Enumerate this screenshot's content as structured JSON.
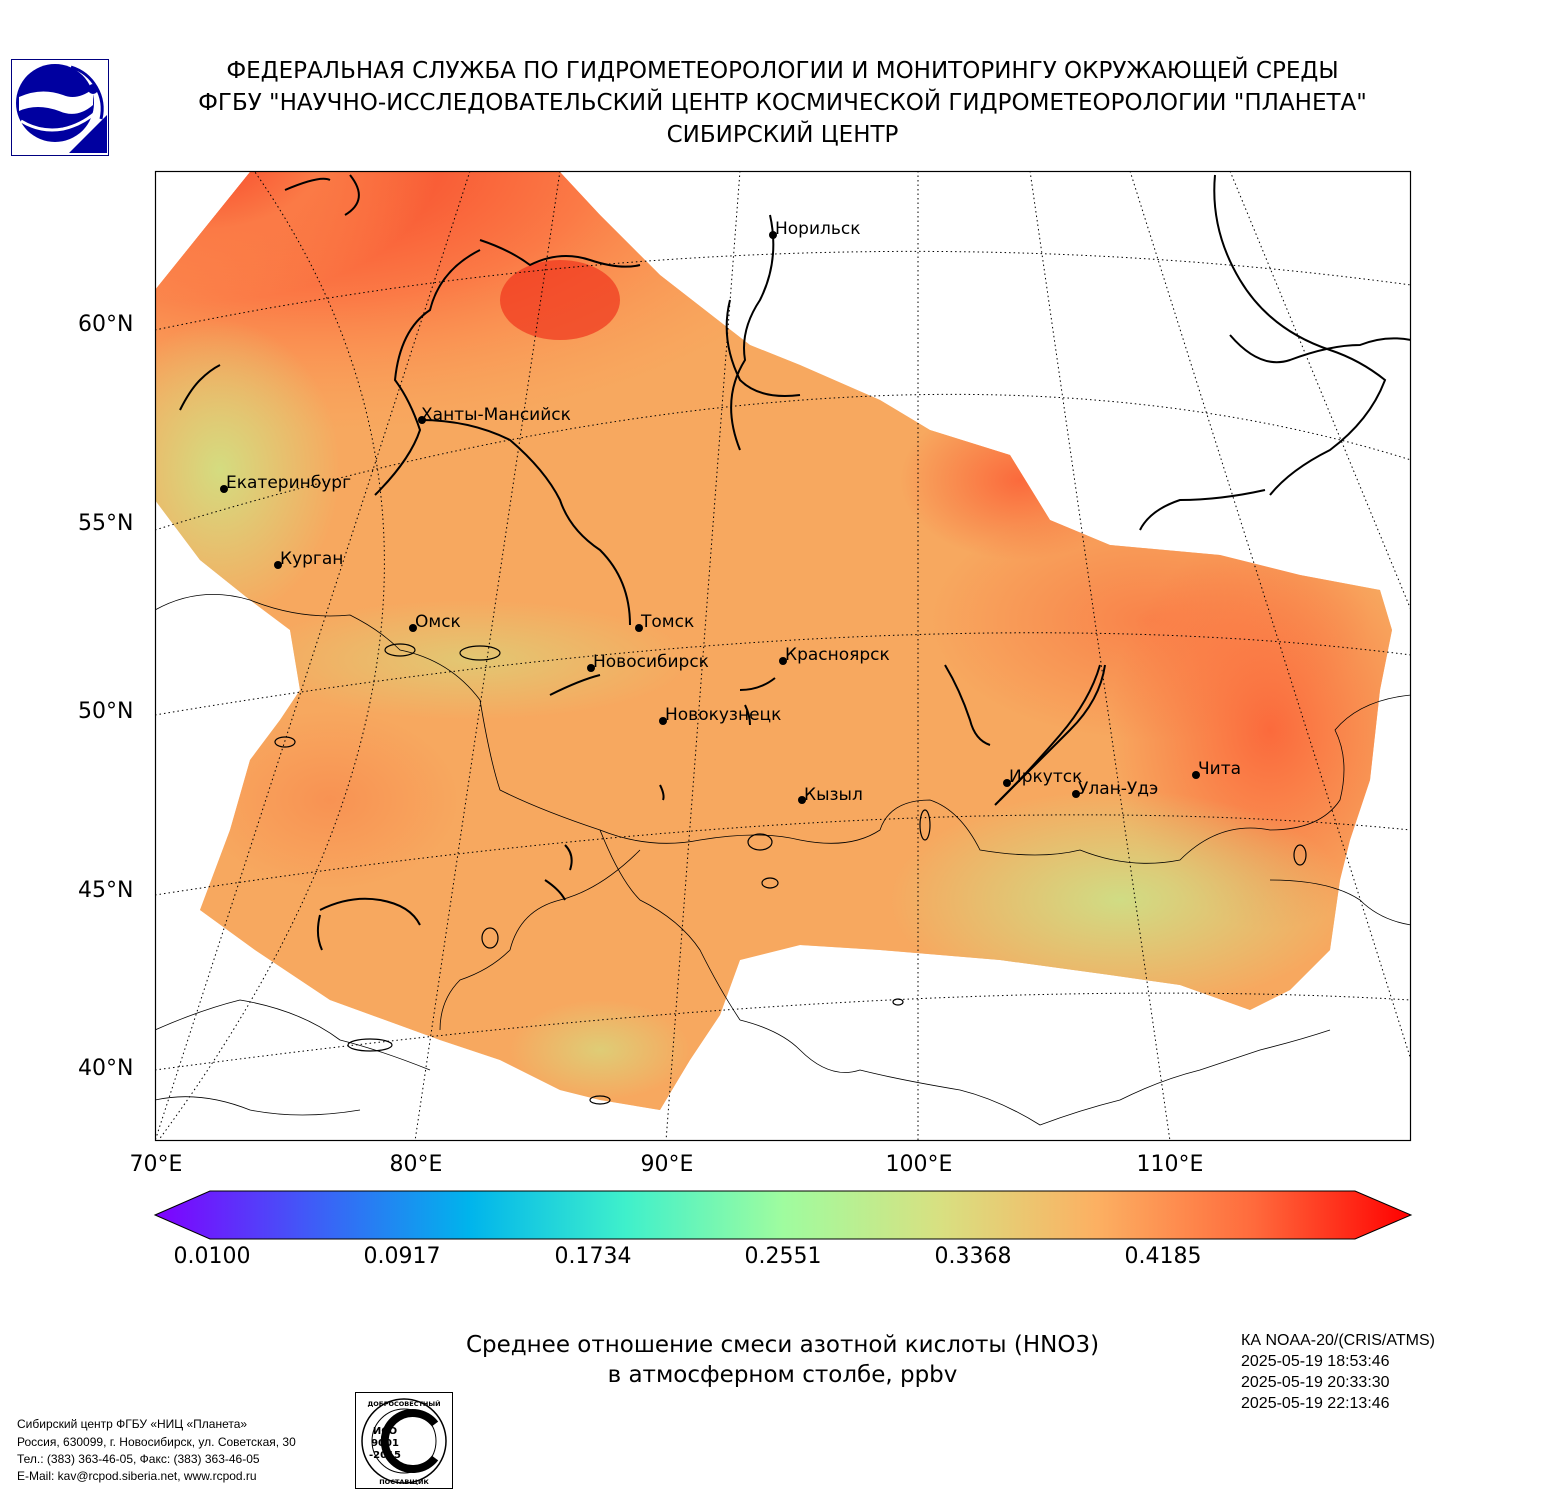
{
  "header": {
    "line1": "ФЕДЕРАЛЬНАЯ СЛУЖБА ПО ГИДРОМЕТЕОРОЛОГИИ И МОНИТОРИНГУ ОКРУЖАЮЩЕЙ СРЕДЫ",
    "line2": "ФГБУ \"НАУЧНО-ИССЛЕДОВАТЕЛЬСКИЙ ЦЕНТР КОСМИЧЕСКОЙ ГИДРОМЕТЕОРОЛОГИИ \"ПЛАНЕТА\"",
    "line3": "СИБИРСКИЙ ЦЕНТР"
  },
  "map": {
    "lat_labels": [
      "60°N",
      "55°N",
      "50°N",
      "45°N",
      "40°N"
    ],
    "lon_labels": [
      "70°E",
      "80°E",
      "90°E",
      "100°E",
      "110°E"
    ],
    "cities": [
      {
        "name": "Норильск"
      },
      {
        "name": "Ханты-Мансийск"
      },
      {
        "name": "Екатеринбург"
      },
      {
        "name": "Курган"
      },
      {
        "name": "Омск"
      },
      {
        "name": "Томск"
      },
      {
        "name": "Новосибирск"
      },
      {
        "name": "Красноярск"
      },
      {
        "name": "Новокузнецк"
      },
      {
        "name": "Кызыл"
      },
      {
        "name": "Иркутск"
      },
      {
        "name": "Улан-Удэ"
      },
      {
        "name": "Чита"
      }
    ]
  },
  "colorbar": {
    "ticks": [
      "0.0100",
      "0.0917",
      "0.1734",
      "0.2551",
      "0.3368",
      "0.4185"
    ],
    "colors": [
      "#8000ff",
      "#3f5cf7",
      "#00b4ec",
      "#3ff0cb",
      "#9ffc9f",
      "#d8e081",
      "#fcb062",
      "#ff6a3c",
      "#ff0000"
    ]
  },
  "caption": {
    "line1": "Среднее отношение смеси азотной кислоты (HNO3)",
    "line2": "в атмосферном столбе, ppbv"
  },
  "satellite": {
    "name": "КА NOAA-20/(CRIS/ATMS)",
    "times": [
      "2025-05-19 18:53:46",
      "2025-05-19 20:33:30",
      "2025-05-19 22:13:46"
    ]
  },
  "footer": {
    "org": "Сибирский центр ФГБУ «НИЦ «Планета»",
    "address": "Россия, 630099, г. Новосибирск, ул. Советская, 30",
    "phone": "Тел.: (383) 363-46-05, Факс: (383) 363-46-05",
    "email": "E-Mail: kav@rcpod.siberia.net, www.rcpod.ru"
  },
  "iso_badge": {
    "top": "ДОБРОСОВЕСТНЫЙ",
    "center": "ИСО 9001 -2015",
    "bottom": "ПОСТАВЩИК"
  }
}
